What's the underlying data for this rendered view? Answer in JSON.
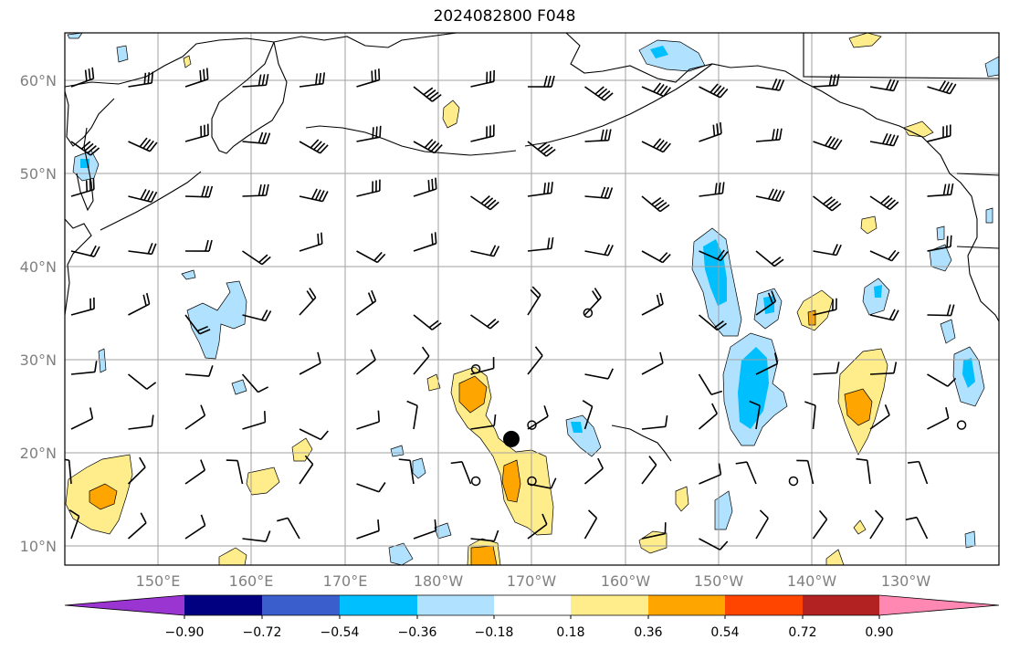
{
  "title": "2024082800 F048",
  "map": {
    "lat_labels": [
      "60°N",
      "50°N",
      "40°N",
      "30°N",
      "20°N",
      "10°N"
    ],
    "lon_labels": [
      "150°E",
      "160°E",
      "170°E",
      "180°W",
      "170°W",
      "160°W",
      "150°W",
      "140°W",
      "130°W"
    ],
    "extent": {
      "lon_min": 140,
      "lon_max": 240,
      "lat_min": 8,
      "lat_max": 65
    },
    "colors": {
      "coast": "#000000",
      "grid": "#a0a0a0",
      "barb": "#000000"
    }
  },
  "colorbar": {
    "tick_labels": [
      "−0.90",
      "−0.72",
      "−0.54",
      "−0.36",
      "−0.18",
      "0.18",
      "0.36",
      "0.54",
      "0.72",
      "0.90"
    ],
    "colors": [
      "#9a35d2",
      "#000080",
      "#3a5fcd",
      "#00bfff",
      "#b0e2ff",
      "#ffffff",
      "#ffec8b",
      "#ffa500",
      "#ff4500",
      "#b22222",
      "#ff88b3"
    ]
  },
  "markers": [
    {
      "kind": "circle-open",
      "lon": 184,
      "lat": 29
    },
    {
      "kind": "circle-open",
      "lon": 184,
      "lat": 17
    },
    {
      "kind": "circle-open",
      "lon": 190,
      "lat": 23
    },
    {
      "kind": "circle-open",
      "lon": 190,
      "lat": 17
    },
    {
      "kind": "circle-open",
      "lon": 196,
      "lat": 35
    },
    {
      "kind": "circle-open",
      "lon": 218,
      "lat": 17
    },
    {
      "kind": "circle-open",
      "lon": 236,
      "lat": 23
    },
    {
      "kind": "circle-filled",
      "lon": 187.8,
      "lat": 21.5
    }
  ]
}
